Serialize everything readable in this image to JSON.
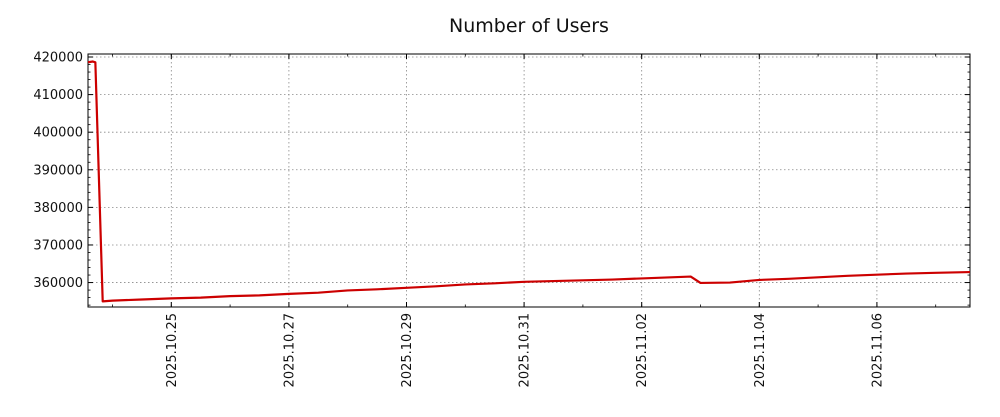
{
  "chart_data": {
    "type": "line",
    "title": "Number of Users",
    "xlabel": "",
    "ylabel": "",
    "x_ticks": [
      "2025.10.25",
      "2025.10.27",
      "2025.10.29",
      "2025.10.31",
      "2025.11.02",
      "2025.11.04",
      "2025.11.06"
    ],
    "y_ticks": [
      "360000",
      "370000",
      "380000",
      "390000",
      "400000",
      "410000",
      "420000"
    ],
    "xlim": [
      "2025-10-23 14:00",
      "2025-11-07 14:00"
    ],
    "ylim": [
      353500,
      420800
    ],
    "grid": true,
    "series": [
      {
        "color": "#cc0000",
        "points": [
          {
            "x": "2025-10-23 14:00",
            "y": 418600
          },
          {
            "x": "2025-10-23 16:00",
            "y": 418800
          },
          {
            "x": "2025-10-23 17:00",
            "y": 418600
          },
          {
            "x": "2025-10-23 20:00",
            "y": 355000
          },
          {
            "x": "2025-10-24 00:00",
            "y": 355200
          },
          {
            "x": "2025-10-24 12:00",
            "y": 355500
          },
          {
            "x": "2025-10-25 00:00",
            "y": 355800
          },
          {
            "x": "2025-10-25 12:00",
            "y": 356000
          },
          {
            "x": "2025-10-26 00:00",
            "y": 356400
          },
          {
            "x": "2025-10-26 12:00",
            "y": 356600
          },
          {
            "x": "2025-10-27 00:00",
            "y": 357000
          },
          {
            "x": "2025-10-27 12:00",
            "y": 357300
          },
          {
            "x": "2025-10-28 00:00",
            "y": 357900
          },
          {
            "x": "2025-10-28 12:00",
            "y": 358200
          },
          {
            "x": "2025-10-29 00:00",
            "y": 358600
          },
          {
            "x": "2025-10-29 12:00",
            "y": 359000
          },
          {
            "x": "2025-10-30 00:00",
            "y": 359500
          },
          {
            "x": "2025-10-30 12:00",
            "y": 359800
          },
          {
            "x": "2025-10-31 00:00",
            "y": 360200
          },
          {
            "x": "2025-10-31 12:00",
            "y": 360400
          },
          {
            "x": "2025-11-01 00:00",
            "y": 360600
          },
          {
            "x": "2025-11-01 12:00",
            "y": 360800
          },
          {
            "x": "2025-11-02 00:00",
            "y": 361100
          },
          {
            "x": "2025-11-02 12:00",
            "y": 361400
          },
          {
            "x": "2025-11-02 20:00",
            "y": 361600
          },
          {
            "x": "2025-11-03 00:00",
            "y": 359900
          },
          {
            "x": "2025-11-03 12:00",
            "y": 360000
          },
          {
            "x": "2025-11-04 00:00",
            "y": 360700
          },
          {
            "x": "2025-11-04 12:00",
            "y": 361000
          },
          {
            "x": "2025-11-05 00:00",
            "y": 361400
          },
          {
            "x": "2025-11-05 12:00",
            "y": 361800
          },
          {
            "x": "2025-11-06 00:00",
            "y": 362100
          },
          {
            "x": "2025-11-06 12:00",
            "y": 362400
          },
          {
            "x": "2025-11-07 00:00",
            "y": 362600
          },
          {
            "x": "2025-11-07 14:00",
            "y": 362800
          }
        ]
      }
    ]
  }
}
